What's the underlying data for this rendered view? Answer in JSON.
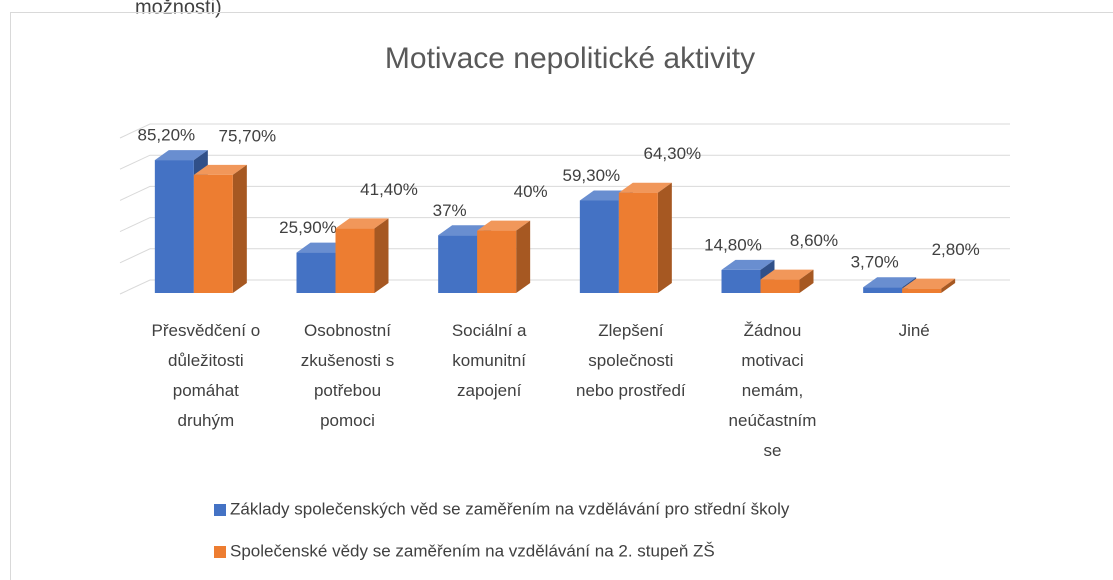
{
  "caption_fragment": "možnosti)",
  "chart_data": {
    "type": "bar3d",
    "title": "Motivace nepolitické aktivity",
    "categories": [
      "Přesvědčení o důležitosti pomáhat druhým",
      "Osobnostní zkušenosti s potřebou pomoci",
      "Sociální a komunitní zapojení",
      "Zlepšení společnosti nebo prostředí",
      "Žádnou motivaci nemám, neúčastním se",
      "Jiné"
    ],
    "series": [
      {
        "name": "Základy společenských věd se zaměřením na vzdělávání pro střední školy",
        "color": "#4472c4",
        "values": [
          85.2,
          25.9,
          37,
          59.3,
          14.8,
          3.7
        ],
        "value_labels": [
          "85,20%",
          "25,90%",
          "37%",
          "59,30%",
          "14,80%",
          "3,70%"
        ]
      },
      {
        "name": "Společenské vědy se zaměřením na vzdělávání na 2. stupeň ZŠ",
        "color": "#ed7d31",
        "values": [
          75.7,
          41.4,
          40,
          64.3,
          8.6,
          2.8
        ],
        "value_labels": [
          "75,70%",
          "41,40%",
          "40%",
          "64,30%",
          "8,60%",
          "2,80%"
        ]
      }
    ],
    "ylim": [
      0,
      100
    ],
    "yticks": [
      0,
      20,
      40,
      60,
      80,
      100
    ],
    "grid": true
  }
}
